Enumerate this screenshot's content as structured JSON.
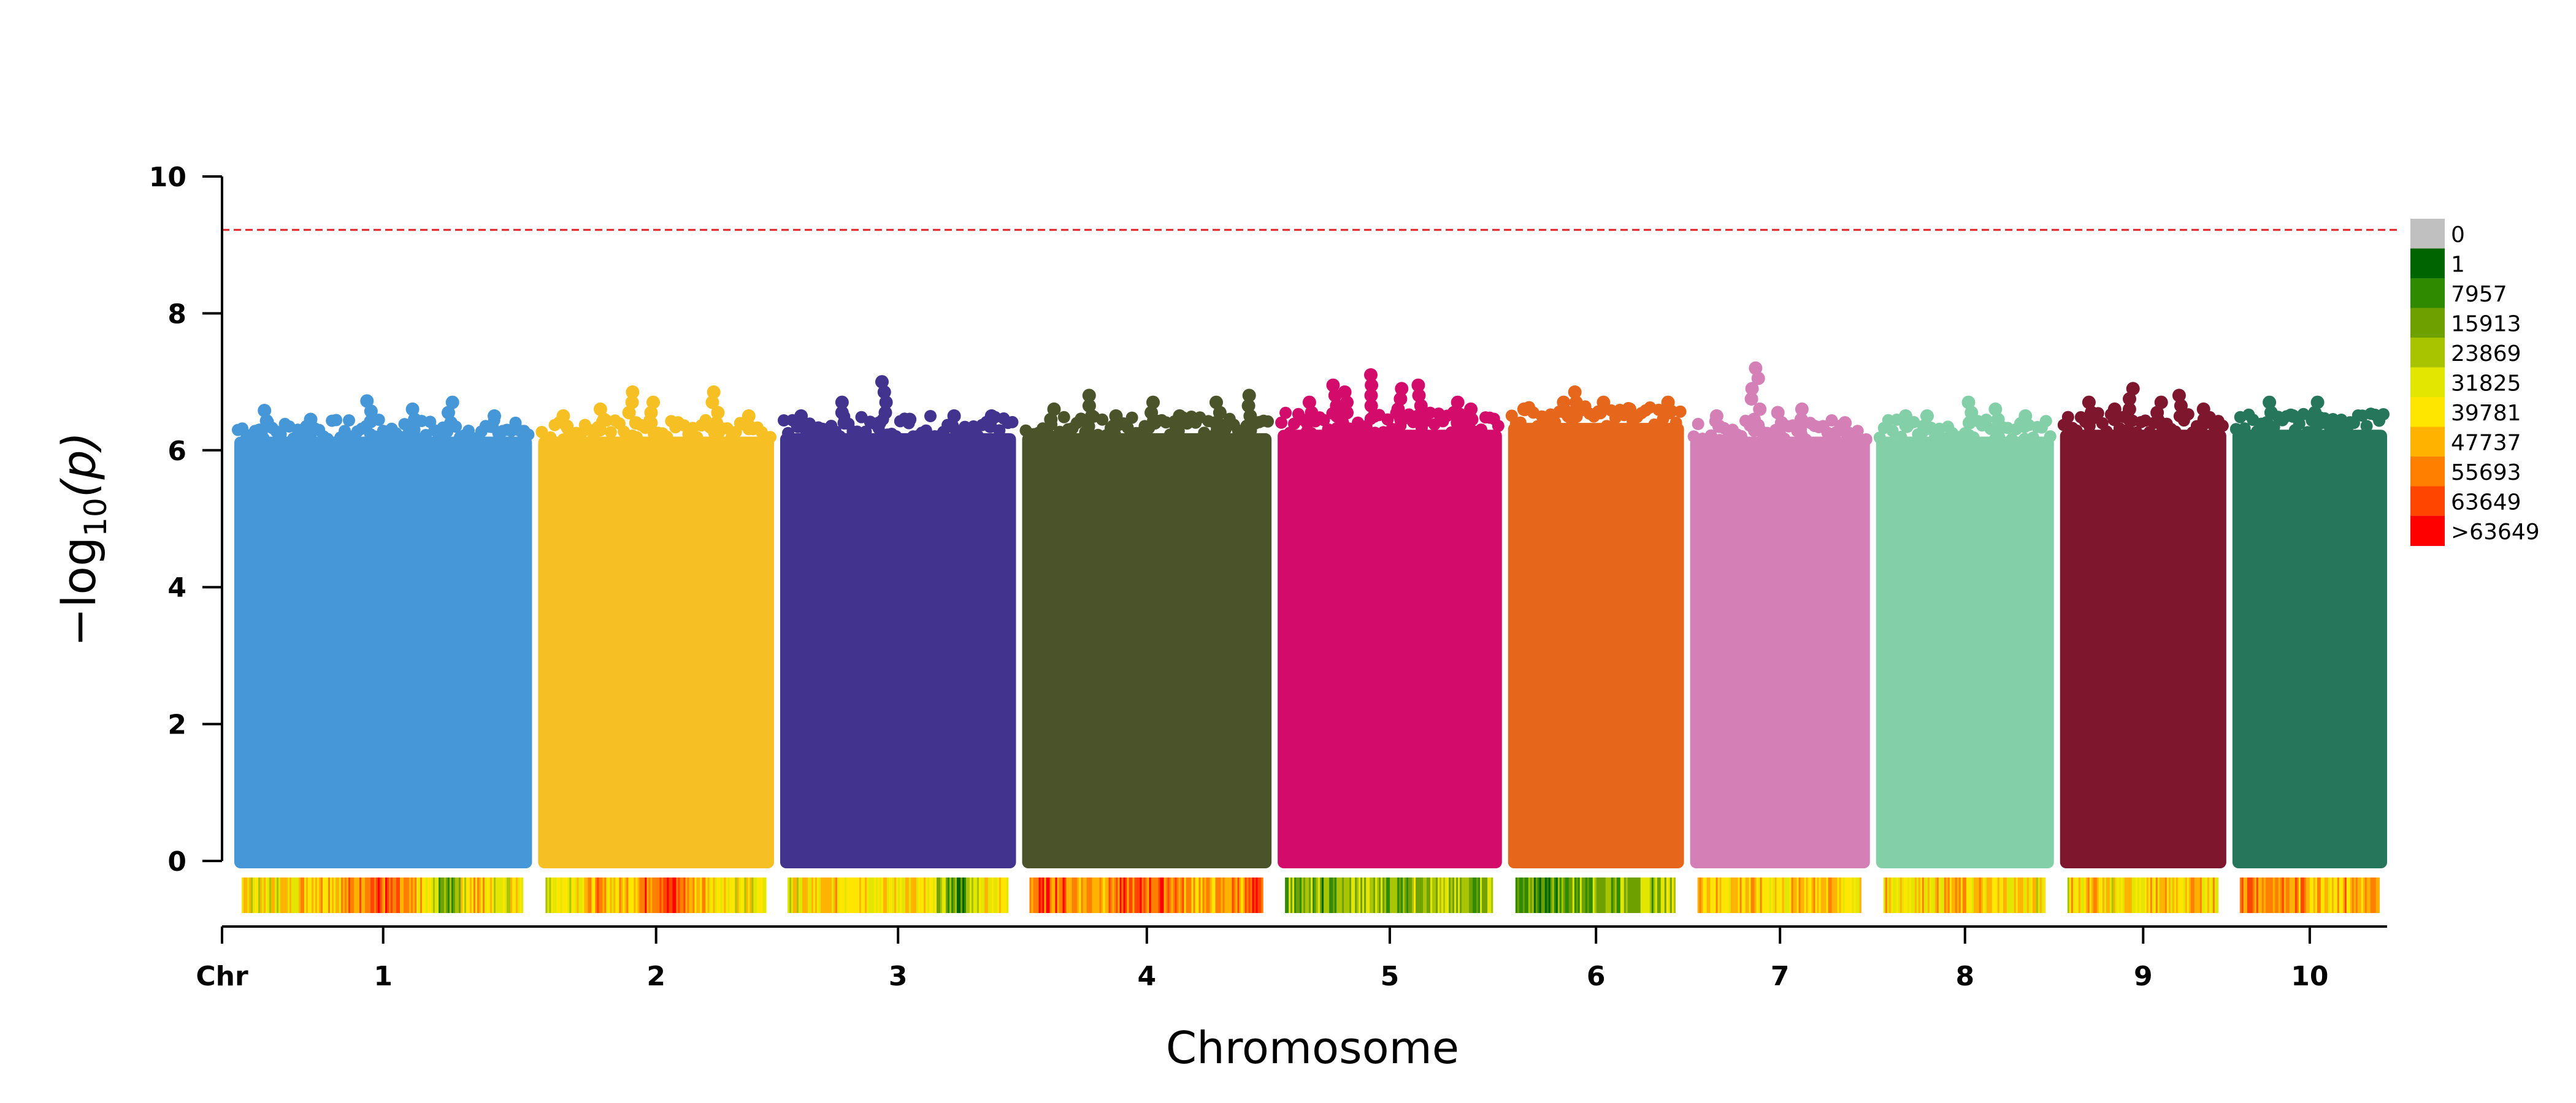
{
  "chart_data": {
    "type": "scatter",
    "subtype": "manhattan",
    "title": "",
    "xlabel": "Chromosome",
    "ylabel": {
      "prefix": "−log",
      "sub": "10",
      "suffix": "(p)"
    },
    "ylim": [
      0,
      10
    ],
    "yticks": [
      0,
      2,
      4,
      6,
      8,
      10
    ],
    "xtick_first_label": "Chr",
    "threshold": {
      "y": 9.22,
      "color": "#e02020",
      "style": "dashed"
    },
    "chromosomes": [
      {
        "label": "1",
        "color": "#4597d7",
        "size": 1.54,
        "bulk_top": 6.2,
        "peak": 6.7,
        "outliers": [
          6.58,
          6.45,
          6.72,
          6.6,
          6.7,
          6.5
        ],
        "density": [
          0.55,
          0.5,
          0.6,
          0.7,
          0.65,
          0.9,
          0.75,
          0.6,
          0.15,
          0.7,
          0.5,
          0.6
        ]
      },
      {
        "label": "2",
        "color": "#f6c024",
        "size": 1.22,
        "bulk_top": 6.2,
        "peak": 6.85,
        "outliers": [
          6.5,
          6.6,
          6.85,
          6.7,
          6.4,
          6.85,
          6.5
        ],
        "density": [
          0.5,
          0.55,
          0.7,
          0.6,
          0.8,
          0.95,
          0.7,
          0.6,
          0.5,
          0.45
        ]
      },
      {
        "label": "3",
        "color": "#42338f",
        "size": 1.22,
        "bulk_top": 6.25,
        "peak": 7.0,
        "outliers": [
          6.5,
          6.7,
          7.0,
          6.45,
          6.5,
          6.5
        ],
        "density": [
          0.45,
          0.55,
          0.6,
          0.65,
          0.5,
          0.6,
          0.4,
          0.1,
          0.6,
          0.5
        ]
      },
      {
        "label": "4",
        "color": "#4b532b",
        "size": 1.29,
        "bulk_top": 6.25,
        "peak": 6.8,
        "outliers": [
          6.6,
          6.8,
          6.5,
          6.7,
          6.5,
          6.7,
          6.8
        ],
        "density": [
          0.8,
          0.85,
          0.7,
          0.75,
          0.8,
          0.9,
          0.7,
          0.65,
          0.75,
          0.85
        ]
      },
      {
        "label": "5",
        "color": "#d30c6c",
        "size": 1.16,
        "bulk_top": 6.3,
        "peak": 7.1,
        "outliers": [
          6.7,
          6.95,
          6.85,
          7.1,
          6.9,
          6.95,
          6.7,
          6.6
        ],
        "density": [
          0.3,
          0.25,
          0.2,
          0.35,
          0.3,
          0.25,
          0.4,
          0.3,
          0.25,
          0.35
        ]
      },
      {
        "label": "6",
        "color": "#e6661b",
        "size": 0.91,
        "bulk_top": 6.4,
        "peak": 6.85,
        "outliers": [
          6.6,
          6.7,
          6.85,
          6.7,
          6.6,
          6.7
        ],
        "density": [
          0.1,
          0.15,
          0.2,
          0.3,
          0.25,
          0.35,
          0.3,
          0.4
        ]
      },
      {
        "label": "7",
        "color": "#d47fb6",
        "size": 0.93,
        "bulk_top": 6.2,
        "peak": 7.2,
        "outliers": [
          6.5,
          7.2,
          6.55,
          6.6,
          6.4
        ],
        "density": [
          0.7,
          0.6,
          0.65,
          0.55,
          0.6,
          0.7,
          0.6,
          0.5
        ]
      },
      {
        "label": "8",
        "color": "#83d0a8",
        "size": 0.92,
        "bulk_top": 6.2,
        "peak": 6.7,
        "outliers": [
          6.5,
          6.5,
          6.7,
          6.6,
          6.5
        ],
        "density": [
          0.6,
          0.55,
          0.6,
          0.65,
          0.6,
          0.55,
          0.6,
          0.5
        ]
      },
      {
        "label": "9",
        "color": "#7e162e",
        "size": 0.86,
        "bulk_top": 6.3,
        "peak": 6.9,
        "outliers": [
          6.7,
          6.6,
          6.9,
          6.7,
          6.8,
          6.6
        ],
        "density": [
          0.55,
          0.6,
          0.5,
          0.6,
          0.55,
          0.65,
          0.55
        ]
      },
      {
        "label": "10",
        "color": "#25765a",
        "size": 0.8,
        "bulk_top": 6.3,
        "peak": 6.7,
        "outliers": [
          6.7,
          6.5,
          6.7,
          6.4
        ],
        "density": [
          0.85,
          0.8,
          0.75,
          0.7,
          0.65,
          0.7,
          0.6
        ]
      }
    ],
    "density_legend": {
      "labels": [
        "0",
        "1",
        "7957",
        "15913",
        "23869",
        "31825",
        "39781",
        "47737",
        "55693",
        "63649",
        ">63649"
      ],
      "colors": [
        "#c0c0c0",
        "#006400",
        "#2f8a00",
        "#6ea000",
        "#a8c400",
        "#e2e600",
        "#ffe600",
        "#ffb300",
        "#ff7f00",
        "#ff4500",
        "#ff0000"
      ]
    }
  }
}
